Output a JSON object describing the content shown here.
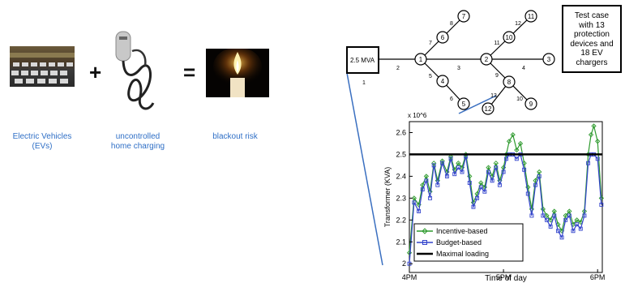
{
  "left_panel": {
    "captions": [
      "Electric Vehicles\n(EVs)",
      "uncontrolled\nhome charging",
      "blackout risk"
    ],
    "operators": [
      "+",
      "="
    ],
    "icons": [
      "ev-parking-lot-photo",
      "ev-charger-cable-photo",
      "candle-flame-photo"
    ]
  },
  "network": {
    "source_label": "2.5 MVA",
    "nodes": [
      "1",
      "2",
      "3",
      "4",
      "5",
      "6",
      "7",
      "8",
      "9",
      "10",
      "11",
      "12",
      "13"
    ],
    "line_labels": [
      "1",
      "2",
      "3",
      "4",
      "5",
      "6",
      "7",
      "8",
      "9",
      "10",
      "11",
      "12",
      "13"
    ],
    "test_case_text": "Test case\nwith 13\nprotection\ndevices and\n18 EV\nchargers"
  },
  "chart_data": {
    "type": "line",
    "ylabel": "Transformer (KVA)",
    "xlabel": "Time of day",
    "y_multiplier": "x 10^6",
    "yticks": [
      2.0,
      2.1,
      2.2,
      2.3,
      2.4,
      2.5,
      2.6
    ],
    "ytick_labels": [
      "2",
      "2.1",
      "2.2",
      "2.3",
      "2.4",
      "2.5",
      "2.6"
    ],
    "ylim": [
      1.96,
      2.65
    ],
    "xticks": [
      "4PM",
      "5PM",
      "6PM"
    ],
    "xlim": [
      16.0,
      18.05
    ],
    "grid": false,
    "legend_position": "bottom-left",
    "series": [
      {
        "name": "Incentive-based",
        "color": "#2e9a2e",
        "marker": "diamond",
        "x": [
          16.0,
          16.05,
          16.1,
          16.14,
          16.18,
          16.22,
          16.26,
          16.3,
          16.35,
          16.4,
          16.44,
          16.48,
          16.52,
          16.56,
          16.6,
          16.64,
          16.68,
          16.72,
          16.76,
          16.8,
          16.84,
          16.88,
          16.92,
          16.96,
          17.0,
          17.03,
          17.06,
          17.1,
          17.14,
          17.18,
          17.22,
          17.26,
          17.3,
          17.34,
          17.38,
          17.42,
          17.46,
          17.5,
          17.54,
          17.58,
          17.62,
          17.66,
          17.7,
          17.74,
          17.78,
          17.82,
          17.86,
          17.9,
          17.93,
          17.96,
          18.0,
          18.04
        ],
        "y": [
          2.05,
          2.3,
          2.27,
          2.36,
          2.4,
          2.33,
          2.46,
          2.38,
          2.47,
          2.42,
          2.49,
          2.43,
          2.46,
          2.44,
          2.5,
          2.4,
          2.28,
          2.32,
          2.37,
          2.35,
          2.44,
          2.4,
          2.46,
          2.38,
          2.44,
          2.5,
          2.56,
          2.59,
          2.52,
          2.55,
          2.46,
          2.35,
          2.25,
          2.38,
          2.42,
          2.25,
          2.22,
          2.2,
          2.24,
          2.18,
          2.15,
          2.22,
          2.24,
          2.18,
          2.2,
          2.19,
          2.24,
          2.5,
          2.59,
          2.63,
          2.56,
          2.3
        ]
      },
      {
        "name": "Budget-based",
        "color": "#3344cc",
        "marker": "square",
        "x": [
          16.0,
          16.05,
          16.1,
          16.14,
          16.18,
          16.22,
          16.26,
          16.3,
          16.35,
          16.4,
          16.44,
          16.48,
          16.52,
          16.56,
          16.6,
          16.64,
          16.68,
          16.72,
          16.76,
          16.8,
          16.84,
          16.88,
          16.92,
          16.96,
          17.0,
          17.03,
          17.06,
          17.1,
          17.14,
          17.18,
          17.22,
          17.26,
          17.3,
          17.34,
          17.38,
          17.42,
          17.46,
          17.5,
          17.54,
          17.58,
          17.62,
          17.66,
          17.7,
          17.74,
          17.78,
          17.82,
          17.86,
          17.9,
          17.93,
          17.96,
          18.0,
          18.04
        ],
        "y": [
          2.0,
          2.28,
          2.24,
          2.34,
          2.38,
          2.3,
          2.45,
          2.36,
          2.46,
          2.4,
          2.48,
          2.41,
          2.44,
          2.42,
          2.49,
          2.37,
          2.26,
          2.3,
          2.35,
          2.33,
          2.42,
          2.38,
          2.44,
          2.36,
          2.42,
          2.48,
          2.5,
          2.5,
          2.48,
          2.5,
          2.43,
          2.32,
          2.22,
          2.36,
          2.4,
          2.22,
          2.2,
          2.17,
          2.22,
          2.15,
          2.12,
          2.2,
          2.22,
          2.15,
          2.18,
          2.16,
          2.22,
          2.46,
          2.5,
          2.5,
          2.48,
          2.27
        ]
      },
      {
        "name": "Maximal loading",
        "color": "#000000",
        "marker": "none",
        "x": [
          16.0,
          18.05
        ],
        "y": [
          2.5,
          2.5
        ]
      }
    ]
  }
}
